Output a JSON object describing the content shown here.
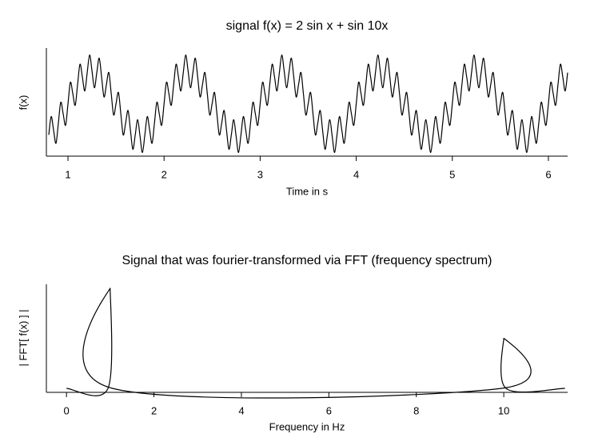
{
  "chart_data": [
    {
      "type": "line",
      "title": "signal f(x) = 2 sin x  +  sin 10x",
      "x_label": "Time in s",
      "y_label": "f(x)",
      "color": "#000000",
      "xlim": [
        0.775,
        6.2
      ],
      "ylim": [
        -3.2,
        3.4
      ],
      "xticks": [
        1,
        2,
        3,
        4,
        5,
        6
      ],
      "x": [
        0.8,
        0.825,
        0.85,
        0.875,
        0.9,
        0.925,
        0.95,
        0.975,
        1,
        1.025,
        1.05,
        1.075,
        1.1,
        1.125,
        1.15,
        1.175,
        1.2,
        1.225,
        1.25,
        1.275,
        1.3,
        1.325,
        1.35,
        1.375,
        1.4,
        1.425,
        1.45,
        1.475,
        1.5,
        1.525,
        1.55,
        1.575,
        1.6,
        1.625,
        1.65,
        1.675,
        1.7,
        1.725,
        1.75,
        1.775,
        1.8,
        1.825,
        1.85,
        1.875,
        1.9,
        1.925,
        1.95,
        1.975,
        2,
        2.025,
        2.05,
        2.075,
        2.1,
        2.125,
        2.15,
        2.175,
        2.2,
        2.225,
        2.25,
        2.275,
        2.3,
        2.325,
        2.35,
        2.375,
        2.4,
        2.425,
        2.45,
        2.475,
        2.5,
        2.525,
        2.55,
        2.575,
        2.6,
        2.625,
        2.65,
        2.675,
        2.7,
        2.725,
        2.75,
        2.775,
        2.8,
        2.825,
        2.85,
        2.875,
        2.9,
        2.925,
        2.95,
        2.975,
        3,
        3.025,
        3.05,
        3.075,
        3.1,
        3.125,
        3.15,
        3.175,
        3.2,
        3.225,
        3.25,
        3.275,
        3.3,
        3.325,
        3.35,
        3.375,
        3.4,
        3.425,
        3.45,
        3.475,
        3.5,
        3.525,
        3.55,
        3.575,
        3.6,
        3.625,
        3.65,
        3.675,
        3.7,
        3.725,
        3.75,
        3.775,
        3.8,
        3.825,
        3.85,
        3.875,
        3.9,
        3.925,
        3.95,
        3.975,
        4,
        4.025,
        4.05,
        4.075,
        4.1,
        4.125,
        4.15,
        4.175,
        4.2,
        4.225,
        4.25,
        4.275,
        4.3,
        4.325,
        4.35,
        4.375,
        4.4,
        4.425,
        4.45,
        4.475,
        4.5,
        4.525,
        4.55,
        4.575,
        4.6,
        4.625,
        4.65,
        4.675,
        4.7,
        4.725,
        4.75,
        4.775,
        4.8,
        4.825,
        4.85,
        4.875,
        4.9,
        4.925,
        4.95,
        4.975,
        5,
        5.025,
        5.05,
        5.075,
        5.1,
        5.125,
        5.15,
        5.175,
        5.2,
        5.225,
        5.25,
        5.275,
        5.3,
        5.325,
        5.35,
        5.375,
        5.4,
        5.425,
        5.45,
        5.475,
        5.5,
        5.525,
        5.55,
        5.575,
        5.6,
        5.625,
        5.65,
        5.675,
        5.7,
        5.725,
        5.75,
        5.775,
        5.8,
        5.825,
        5.85,
        5.875,
        5.9,
        5.925,
        5.95,
        5.975,
        6,
        6.025,
        6.05,
        6.075,
        6.1,
        6.125,
        6.15,
        6.175,
        6.2
      ],
      "values": [
        -1.902,
        -0.782,
        -1.618,
        -2.414,
        -1.176,
        0.092,
        -0.618,
        -1.313,
        0,
        1.313,
        0.618,
        -0.092,
        1.176,
        2.414,
        1.618,
        0.782,
        1.902,
        2.975,
        2,
        0.975,
        1.902,
        2.782,
        1.618,
        0.414,
        1.176,
        1.908,
        0.618,
        -0.687,
        0,
        0.687,
        -0.618,
        -1.908,
        -1.176,
        -0.414,
        -1.618,
        -2.782,
        -1.902,
        -0.975,
        -2,
        -2.975,
        -1.902,
        -0.782,
        -1.618,
        -2.414,
        -1.176,
        0.092,
        -0.618,
        -1.313,
        0,
        1.313,
        0.618,
        -0.092,
        1.176,
        2.414,
        1.618,
        0.782,
        1.902,
        2.975,
        2,
        0.975,
        1.902,
        2.782,
        1.618,
        0.414,
        1.176,
        1.908,
        0.618,
        -0.687,
        0,
        0.687,
        -0.618,
        -1.908,
        -1.176,
        -0.414,
        -1.618,
        -2.782,
        -1.902,
        -0.975,
        -2,
        -2.975,
        -1.902,
        -0.782,
        -1.618,
        -2.414,
        -1.176,
        0.092,
        -0.618,
        -1.313,
        0,
        1.313,
        0.618,
        -0.092,
        1.176,
        2.414,
        1.618,
        0.782,
        1.902,
        2.975,
        2,
        0.975,
        1.902,
        2.782,
        1.618,
        0.414,
        1.176,
        1.908,
        0.618,
        -0.687,
        0,
        0.687,
        -0.618,
        -1.908,
        -1.176,
        -0.414,
        -1.618,
        -2.782,
        -1.902,
        -0.975,
        -2,
        -2.975,
        -1.902,
        -0.782,
        -1.618,
        -2.414,
        -1.176,
        0.092,
        -0.618,
        -1.313,
        0,
        1.313,
        0.618,
        -0.092,
        1.176,
        2.414,
        1.618,
        0.782,
        1.902,
        2.975,
        2,
        0.975,
        1.902,
        2.782,
        1.618,
        0.414,
        1.176,
        1.908,
        0.618,
        -0.687,
        0,
        0.687,
        -0.618,
        -1.908,
        -1.176,
        -0.414,
        -1.618,
        -2.782,
        -1.902,
        -0.975,
        -2,
        -2.975,
        -1.902,
        -0.782,
        -1.618,
        -2.414,
        -1.176,
        0.092,
        -0.618,
        -1.313,
        0,
        1.313,
        0.618,
        -0.092,
        1.176,
        2.414,
        1.618,
        0.782,
        1.902,
        2.975,
        2,
        0.975,
        1.902,
        2.782,
        1.618,
        0.414,
        1.176,
        1.908,
        0.618,
        -0.687,
        0,
        0.687,
        -0.618,
        -1.908,
        -1.176,
        -0.414,
        -1.618,
        -2.782,
        -1.902,
        -0.975,
        -2,
        -2.975,
        -1.902,
        -0.782,
        -1.618,
        -2.414,
        -1.176,
        0.092,
        -0.618,
        -1.313,
        0,
        1.313,
        0.618,
        -0.092,
        1.176,
        2.414,
        1.618,
        0.782,
        1.902
      ]
    },
    {
      "type": "line",
      "title": "Signal that was fourier-transformed via FFT (frequency spectrum)",
      "x_label": "Frequency in Hz",
      "y_label": "| FFT[ f(x) ] |",
      "color": "#000000",
      "xlim": [
        -0.46,
        11.46
      ],
      "ylim": [
        -0.08,
        2.08
      ],
      "xticks": [
        0,
        2,
        4,
        6,
        8,
        10
      ],
      "x": [
        0,
        0.95,
        1,
        1.05,
        9.95,
        10,
        10.05,
        11.4
      ],
      "values": [
        0,
        0,
        2,
        0,
        0,
        1,
        0,
        0
      ]
    }
  ]
}
